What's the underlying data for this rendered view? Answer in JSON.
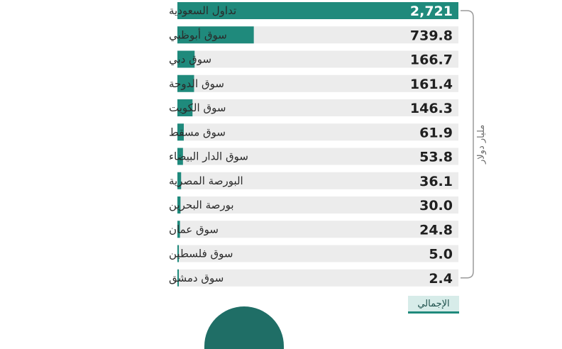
{
  "chart_data": {
    "type": "bar",
    "orientation": "horizontal",
    "categories": [
      "تداول السعودية",
      "سوق أبوظبي",
      "سوق دبي",
      "سوق الدوحة",
      "سوق الكويت",
      "سوق مسقط",
      "سوق الدار البيضاء",
      "البورصة المصرية",
      "بورصة البحرين",
      "سوق عمان",
      "سوق فلسطين",
      "سوق دمشق"
    ],
    "values": [
      2721,
      739.8,
      166.7,
      161.4,
      146.3,
      61.9,
      53.8,
      36.1,
      30.0,
      24.8,
      5.0,
      2.4
    ],
    "value_labels": [
      "2,721",
      "739.8",
      "166.7",
      "161.4",
      "146.3",
      "61.9",
      "53.8",
      "36.1",
      "30.0",
      "24.8",
      "5.0",
      "2.4"
    ],
    "unit_label": "مليار دولار",
    "xlim": [
      0,
      2721
    ],
    "grid": false,
    "colors": {
      "bar": "#1f8a7c",
      "track": "#ececec",
      "bracket": "#9a9a9a"
    }
  },
  "footer": {
    "total_label": "الإجمالي"
  }
}
